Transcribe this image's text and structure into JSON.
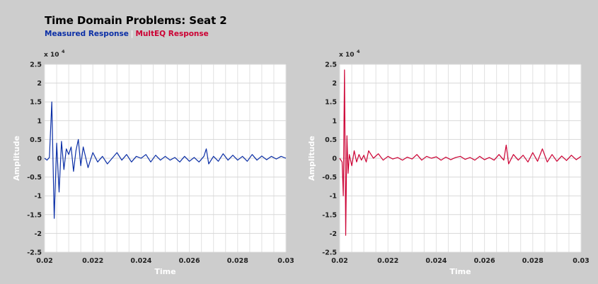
{
  "title": "Time Domain Problems: Seat 2",
  "legend": [
    {
      "label": "Measured Response",
      "color": "#0b2fa6"
    },
    {
      "label": "MultEQ Response",
      "color": "#cc0033"
    }
  ],
  "chart_data": [
    {
      "type": "line",
      "xlabel": "Time",
      "ylabel": "Amplitude",
      "exponent_label": "x 10",
      "exponent_power": "4",
      "xlim": [
        0.02,
        0.03
      ],
      "ylim": [
        -2.5,
        2.5
      ],
      "xticks": [
        "0.02",
        "0.022",
        "0.024",
        "0.026",
        "0.028",
        "0.03"
      ],
      "yticks": [
        "2.5",
        "2",
        "1.5",
        "1",
        "0.5",
        "0",
        "-0.5",
        "-1",
        "-1.5",
        "-2",
        "-2.5"
      ],
      "grid": true,
      "series": [
        {
          "name": "Measured Response",
          "color": "#0b2fa6",
          "x": [
            0.02,
            0.0201,
            0.0202,
            0.0203,
            0.0204,
            0.0205,
            0.0206,
            0.0207,
            0.0208,
            0.0209,
            0.021,
            0.0211,
            0.0212,
            0.0213,
            0.0214,
            0.0215,
            0.0216,
            0.0218,
            0.022,
            0.0222,
            0.0224,
            0.0226,
            0.0228,
            0.023,
            0.0232,
            0.0234,
            0.0236,
            0.0238,
            0.024,
            0.0242,
            0.0244,
            0.0246,
            0.0248,
            0.025,
            0.0252,
            0.0254,
            0.0256,
            0.0258,
            0.026,
            0.0262,
            0.0264,
            0.0266,
            0.0267,
            0.0268,
            0.027,
            0.0272,
            0.0274,
            0.0276,
            0.0278,
            0.028,
            0.0282,
            0.0284,
            0.0286,
            0.0288,
            0.029,
            0.0292,
            0.0294,
            0.0296,
            0.0298,
            0.03
          ],
          "y": [
            0,
            -0.05,
            0.02,
            1.5,
            -1.6,
            0.4,
            -0.9,
            0.45,
            -0.3,
            0.25,
            0.1,
            0.3,
            -0.35,
            0.2,
            0.5,
            -0.2,
            0.3,
            -0.25,
            0.15,
            -0.1,
            0.05,
            -0.15,
            0.0,
            0.15,
            -0.05,
            0.1,
            -0.1,
            0.05,
            0.0,
            0.1,
            -0.1,
            0.08,
            -0.05,
            0.05,
            -0.05,
            0.02,
            -0.1,
            0.05,
            -0.08,
            0.02,
            -0.1,
            0.05,
            0.25,
            -0.15,
            0.05,
            -0.08,
            0.12,
            -0.05,
            0.08,
            -0.05,
            0.05,
            -0.08,
            0.1,
            -0.05,
            0.06,
            -0.04,
            0.05,
            -0.02,
            0.05,
            0.0
          ]
        }
      ]
    },
    {
      "type": "line",
      "xlabel": "Time",
      "ylabel": "Amplitude",
      "exponent_label": "x 10",
      "exponent_power": "4",
      "xlim": [
        0.02,
        0.03
      ],
      "ylim": [
        -2.5,
        2.5
      ],
      "xticks": [
        "0.02",
        "0.022",
        "0.024",
        "0.026",
        "0.028",
        "0.03"
      ],
      "yticks": [
        "2.5",
        "2",
        "1.5",
        "1",
        "0.5",
        "0",
        "-0.5",
        "-1",
        "-1.5",
        "-2",
        "-2.5"
      ],
      "grid": true,
      "series": [
        {
          "name": "MultEQ Response",
          "color": "#cc0033",
          "x": [
            0.02,
            0.0201,
            0.02015,
            0.0202,
            0.02025,
            0.0203,
            0.02035,
            0.0204,
            0.0205,
            0.0206,
            0.0207,
            0.0208,
            0.0209,
            0.021,
            0.0211,
            0.0212,
            0.0214,
            0.0216,
            0.0218,
            0.022,
            0.0222,
            0.0224,
            0.0226,
            0.0228,
            0.023,
            0.0232,
            0.0234,
            0.0236,
            0.0238,
            0.024,
            0.0242,
            0.0244,
            0.0246,
            0.0248,
            0.025,
            0.0252,
            0.0254,
            0.0256,
            0.0258,
            0.026,
            0.0262,
            0.0264,
            0.0266,
            0.0268,
            0.0269,
            0.027,
            0.0272,
            0.0274,
            0.0276,
            0.0278,
            0.028,
            0.0282,
            0.0284,
            0.0286,
            0.0288,
            0.029,
            0.0292,
            0.0294,
            0.0296,
            0.0298,
            0.03
          ],
          "y": [
            0,
            -0.1,
            -1.0,
            2.35,
            -2.05,
            0.6,
            -0.4,
            0.1,
            -0.2,
            0.2,
            -0.1,
            0.1,
            -0.05,
            0.08,
            -0.1,
            0.2,
            0.0,
            0.12,
            -0.05,
            0.05,
            -0.02,
            0.02,
            -0.05,
            0.03,
            -0.02,
            0.1,
            -0.05,
            0.05,
            0.0,
            0.04,
            -0.05,
            0.03,
            -0.04,
            0.02,
            0.05,
            -0.03,
            0.02,
            -0.05,
            0.05,
            -0.04,
            0.02,
            -0.05,
            0.1,
            -0.05,
            0.35,
            -0.15,
            0.1,
            -0.05,
            0.08,
            -0.1,
            0.15,
            -0.08,
            0.25,
            -0.1,
            0.1,
            -0.08,
            0.06,
            -0.06,
            0.08,
            -0.04,
            0.05
          ]
        }
      ]
    }
  ]
}
